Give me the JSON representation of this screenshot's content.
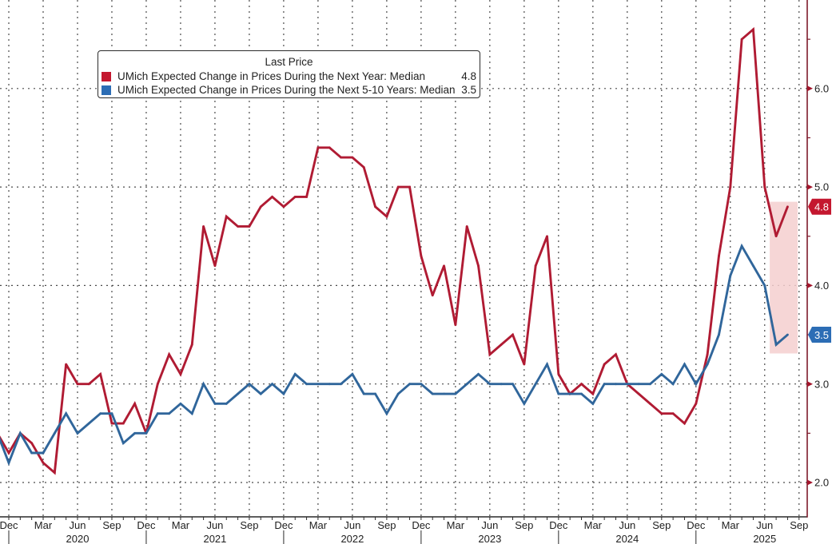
{
  "chart_data": {
    "type": "line",
    "title": "",
    "xlabel": "",
    "ylabel": "",
    "grid": true,
    "legend": {
      "title": "Last Price",
      "placement": "top-left"
    },
    "x": [
      "Nov 2019",
      "Dec 2019",
      "Jan 2020",
      "Feb 2020",
      "Mar 2020",
      "Apr 2020",
      "May 2020",
      "Jun 2020",
      "Jul 2020",
      "Aug 2020",
      "Sep 2020",
      "Oct 2020",
      "Nov 2020",
      "Dec 2020",
      "Jan 2021",
      "Feb 2021",
      "Mar 2021",
      "Apr 2021",
      "May 2021",
      "Jun 2021",
      "Jul 2021",
      "Aug 2021",
      "Sep 2021",
      "Oct 2021",
      "Nov 2021",
      "Dec 2021",
      "Jan 2022",
      "Feb 2022",
      "Mar 2022",
      "Apr 2022",
      "May 2022",
      "Jun 2022",
      "Jul 2022",
      "Aug 2022",
      "Sep 2022",
      "Oct 2022",
      "Nov 2022",
      "Dec 2022",
      "Jan 2023",
      "Feb 2023",
      "Mar 2023",
      "Apr 2023",
      "May 2023",
      "Jun 2023",
      "Jul 2023",
      "Aug 2023",
      "Sep 2023",
      "Oct 2023",
      "Nov 2023",
      "Dec 2023",
      "Jan 2024",
      "Feb 2024",
      "Mar 2024",
      "Apr 2024",
      "May 2024",
      "Jun 2024",
      "Jul 2024",
      "Aug 2024",
      "Sep 2024",
      "Oct 2024",
      "Nov 2024",
      "Dec 2024",
      "Jan 2025",
      "Feb 2025",
      "Mar 2025",
      "Apr 2025",
      "May 2025",
      "Jun 2025",
      "Jul 2025",
      "Aug 2025"
    ],
    "series": [
      {
        "name": "UMich Expected Change in Prices During the Next Year: Median",
        "last_value": "4.8",
        "color": "#b01b33",
        "swatch_color": "#c4172f",
        "values": [
          2.5,
          2.3,
          2.5,
          2.4,
          2.2,
          2.1,
          3.2,
          3.0,
          3.0,
          3.1,
          2.6,
          2.6,
          2.8,
          2.5,
          3.0,
          3.3,
          3.1,
          3.4,
          4.6,
          4.2,
          4.7,
          4.6,
          4.6,
          4.8,
          4.9,
          4.8,
          4.9,
          4.9,
          5.4,
          5.4,
          5.3,
          5.3,
          5.2,
          4.8,
          4.7,
          5.0,
          5.0,
          4.3,
          3.9,
          4.2,
          3.6,
          4.6,
          4.2,
          3.3,
          3.4,
          3.5,
          3.2,
          4.2,
          4.5,
          3.1,
          2.9,
          3.0,
          2.9,
          3.2,
          3.3,
          3.0,
          2.9,
          2.8,
          2.7,
          2.7,
          2.6,
          2.8,
          3.3,
          4.3,
          5.0,
          6.5,
          6.6,
          5.0,
          4.5,
          4.8
        ]
      },
      {
        "name": "UMich Expected Change in Prices During the Next 5-10 Years: Median",
        "last_value": "3.5",
        "color": "#30669b",
        "swatch_color": "#2c6db5",
        "values": [
          2.5,
          2.2,
          2.5,
          2.3,
          2.3,
          2.5,
          2.7,
          2.5,
          2.6,
          2.7,
          2.7,
          2.4,
          2.5,
          2.5,
          2.7,
          2.7,
          2.8,
          2.7,
          3.0,
          2.8,
          2.8,
          2.9,
          3.0,
          2.9,
          3.0,
          2.9,
          3.1,
          3.0,
          3.0,
          3.0,
          3.0,
          3.1,
          2.9,
          2.9,
          2.7,
          2.9,
          3.0,
          3.0,
          2.9,
          2.9,
          2.9,
          3.0,
          3.1,
          3.0,
          3.0,
          3.0,
          2.8,
          3.0,
          3.2,
          2.9,
          2.9,
          2.9,
          2.8,
          3.0,
          3.0,
          3.0,
          3.0,
          3.0,
          3.1,
          3.0,
          3.2,
          3.0,
          3.2,
          3.5,
          4.1,
          4.4,
          4.2,
          4.0,
          3.4,
          3.5
        ]
      }
    ],
    "y_axis": {
      "side": "right",
      "range": [
        1.65,
        6.9
      ],
      "ticks": [
        "2.0",
        "3.0",
        "4.0",
        "5.0",
        "6.0"
      ],
      "minor_ticks": [
        2.5,
        3.5,
        4.5,
        5.5,
        6.5
      ]
    },
    "x_axis": {
      "range": [
        "Nov 2019",
        "Sep 2025"
      ],
      "ticks": [
        {
          "label": "Dec",
          "at": "Dec 2019"
        },
        {
          "label": "Mar",
          "at": "Mar 2020"
        },
        {
          "label": "Jun",
          "at": "Jun 2020"
        },
        {
          "label": "Sep",
          "at": "Sep 2020"
        },
        {
          "label": "Dec",
          "at": "Dec 2020"
        },
        {
          "label": "Mar",
          "at": "Mar 2021"
        },
        {
          "label": "Jun",
          "at": "Jun 2021"
        },
        {
          "label": "Sep",
          "at": "Sep 2021"
        },
        {
          "label": "Dec",
          "at": "Dec 2021"
        },
        {
          "label": "Mar",
          "at": "Mar 2022"
        },
        {
          "label": "Jun",
          "at": "Jun 2022"
        },
        {
          "label": "Sep",
          "at": "Sep 2022"
        },
        {
          "label": "Dec",
          "at": "Dec 2022"
        },
        {
          "label": "Mar",
          "at": "Mar 2023"
        },
        {
          "label": "Jun",
          "at": "Jun 2023"
        },
        {
          "label": "Sep",
          "at": "Sep 2023"
        },
        {
          "label": "Dec",
          "at": "Dec 2023"
        },
        {
          "label": "Mar",
          "at": "Mar 2024"
        },
        {
          "label": "Jun",
          "at": "Jun 2024"
        },
        {
          "label": "Sep",
          "at": "Sep 2024"
        },
        {
          "label": "Dec",
          "at": "Dec 2024"
        },
        {
          "label": "Mar",
          "at": "Mar 2025"
        },
        {
          "label": "Jun",
          "at": "Jun 2025"
        },
        {
          "label": "Sep",
          "at": "Sep 2025"
        }
      ],
      "years": [
        {
          "label": "2020",
          "at": "Jun 2020"
        },
        {
          "label": "2021",
          "at": "Jun 2021"
        },
        {
          "label": "2022",
          "at": "Jun 2022"
        },
        {
          "label": "2023",
          "at": "Jun 2023"
        },
        {
          "label": "2024",
          "at": "Jun 2024"
        },
        {
          "label": "2025",
          "at": "Jun 2025"
        }
      ]
    },
    "highlight": {
      "x_from": "Jul 2025",
      "x_to": "Aug 2025",
      "y_from": 3.31,
      "y_to": 4.85,
      "color": "#f5cfcf"
    },
    "axis_color": "#7e1a2b",
    "tick_marker_color": "#a3152b"
  }
}
